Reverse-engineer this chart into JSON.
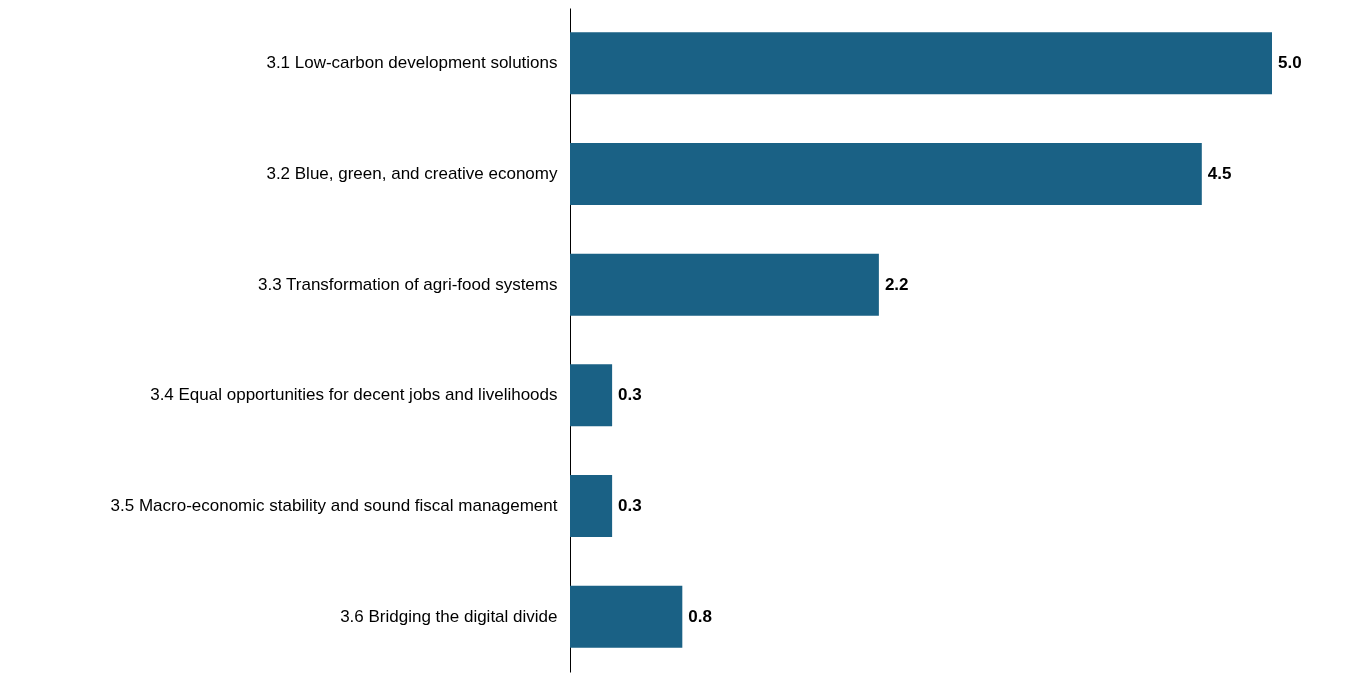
{
  "chart_data": {
    "type": "bar",
    "orientation": "horizontal",
    "categories": [
      "3.1 Low-carbon development solutions",
      "3.2 Blue, green, and creative economy",
      "3.3 Transformation of agri-food systems",
      "3.4 Equal opportunities for decent jobs and livelihoods",
      "3.5 Macro-economic stability and sound fiscal management",
      "3.6 Bridging the digital divide"
    ],
    "values": [
      5.0,
      4.5,
      2.2,
      0.3,
      0.3,
      0.8
    ],
    "value_labels": [
      "5.0",
      "4.5",
      "2.2",
      "0.3",
      "0.3",
      "0.8"
    ],
    "color": "#1a6185"
  }
}
